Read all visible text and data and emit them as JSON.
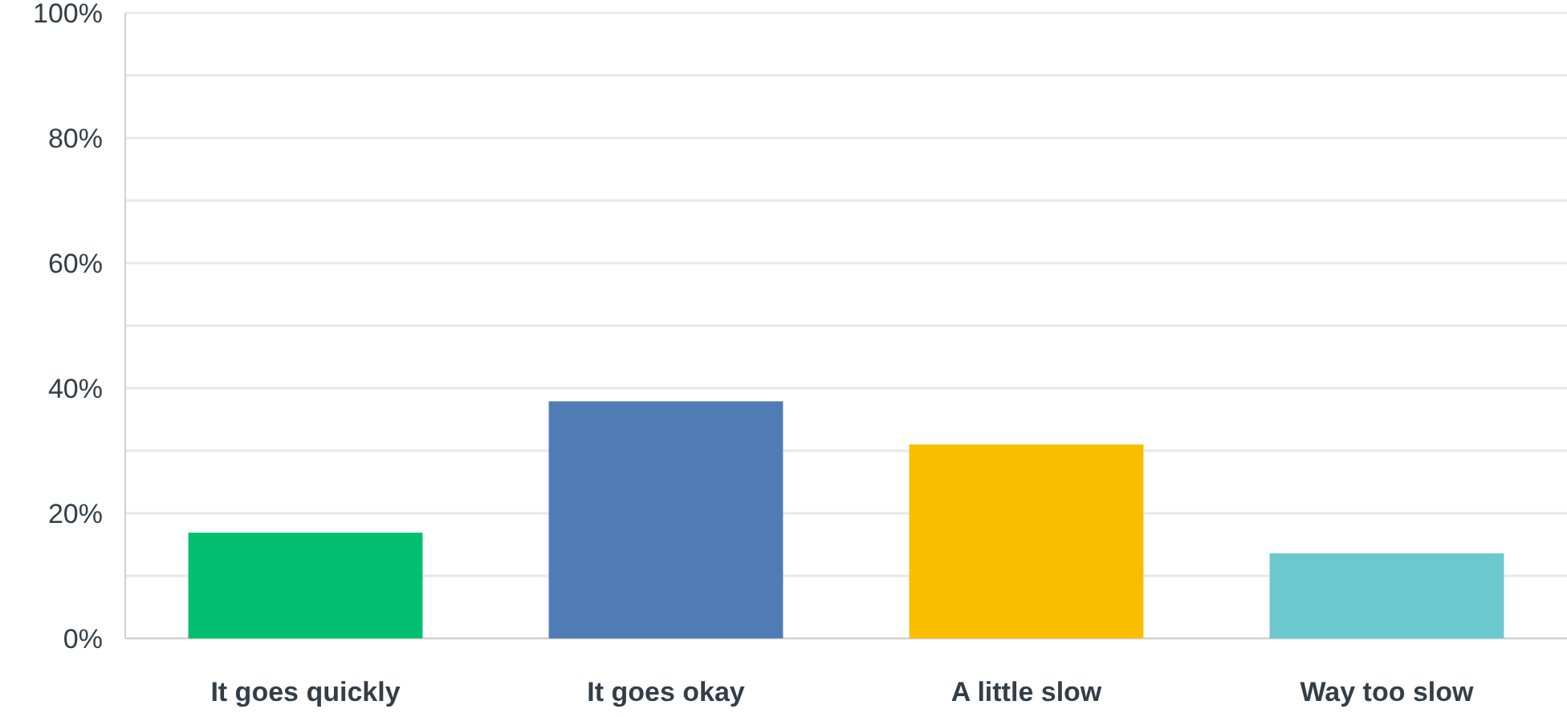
{
  "chart_data": {
    "type": "bar",
    "categories": [
      "It goes quickly",
      "It goes okay",
      "A little slow",
      "Way too slow"
    ],
    "values": [
      16.9,
      37.9,
      31.0,
      13.6
    ],
    "colors": [
      "#00bf6f",
      "#507cb6",
      "#f9be00",
      "#6bc8cd"
    ],
    "ylim": [
      0,
      100
    ],
    "yticks": [
      {
        "value": 0,
        "label": "0%"
      },
      {
        "value": 10,
        "label": null
      },
      {
        "value": 20,
        "label": "20%"
      },
      {
        "value": 30,
        "label": null
      },
      {
        "value": 40,
        "label": "40%"
      },
      {
        "value": 50,
        "label": null
      },
      {
        "value": 60,
        "label": "60%"
      },
      {
        "value": 70,
        "label": null
      },
      {
        "value": 80,
        "label": "80%"
      },
      {
        "value": 90,
        "label": null
      },
      {
        "value": 100,
        "label": "100%"
      }
    ],
    "grid": "y"
  }
}
